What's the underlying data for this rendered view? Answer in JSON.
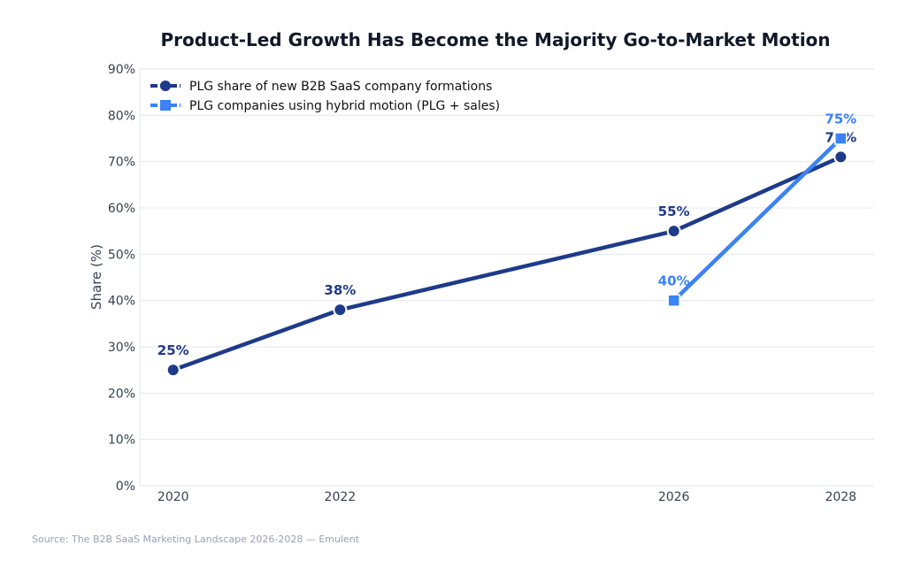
{
  "chart_data": {
    "type": "line",
    "title": "Product-Led Growth Has Become the Majority Go-to-Market Motion",
    "xlabel": "",
    "ylabel": "Share (%)",
    "ylim": [
      0,
      90
    ],
    "xlim": [
      2019.6,
      2028.4
    ],
    "x_ticks": [
      "2020",
      "2022",
      "2026",
      "2028"
    ],
    "y_ticks": [
      "0%",
      "10%",
      "20%",
      "30%",
      "40%",
      "50%",
      "60%",
      "70%",
      "80%",
      "90%"
    ],
    "grid": true,
    "legend_position": "top-left",
    "series": [
      {
        "name": "PLG share of new B2B SaaS company formations",
        "x": [
          2020,
          2022,
          2026,
          2028
        ],
        "values": [
          25,
          38,
          55,
          71
        ],
        "labels": [
          "25%",
          "38%",
          "55%",
          "71%"
        ],
        "color": "#1e3a8a",
        "marker": "circle"
      },
      {
        "name": "PLG companies using hybrid motion (PLG + sales)",
        "x": [
          2026,
          2028
        ],
        "values": [
          40,
          75
        ],
        "labels": [
          "40%",
          "75%"
        ],
        "color": "#3b82f6",
        "marker": "square"
      }
    ]
  },
  "source": "Source: The B2B SaaS Marketing Landscape 2026-2028 — Emulent"
}
